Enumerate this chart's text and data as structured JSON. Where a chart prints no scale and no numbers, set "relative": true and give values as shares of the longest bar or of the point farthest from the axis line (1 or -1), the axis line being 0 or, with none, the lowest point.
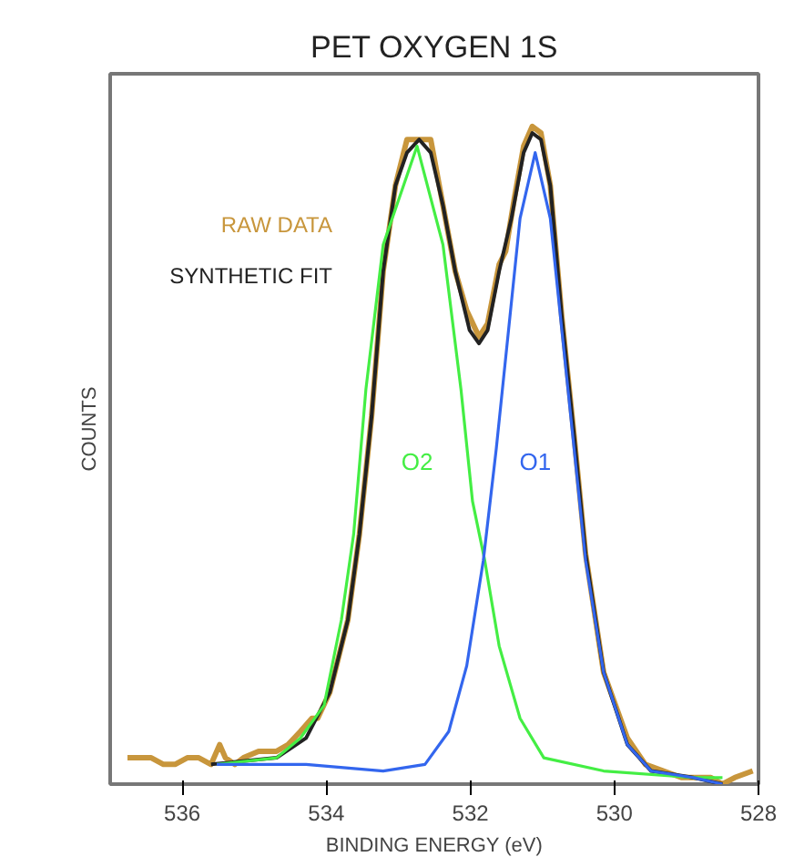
{
  "chart_data": {
    "type": "line",
    "title": "PET OXYGEN 1S",
    "xlabel": "BINDING ENERGY (eV)",
    "ylabel": "COUNTS",
    "relative": true,
    "xlim": [
      537,
      528
    ],
    "xticks": [
      536,
      534,
      532,
      530,
      528
    ],
    "grid": false,
    "legend": "left",
    "marker": "none",
    "line_style": "solid",
    "series": [
      {
        "name": "RAW DATA",
        "color": "#c8963c",
        "x": [
          536.76,
          536.6,
          536.43,
          536.26,
          536.1,
          535.93,
          535.77,
          535.6,
          535.48,
          535.4,
          535.27,
          535.15,
          534.94,
          534.69,
          534.53,
          534.36,
          534.2,
          534.12,
          533.95,
          533.7,
          533.54,
          533.37,
          533.21,
          533.04,
          532.88,
          532.75,
          532.63,
          532.55,
          532.38,
          532.21,
          532.05,
          531.88,
          531.76,
          531.6,
          531.51,
          531.39,
          531.26,
          531.14,
          531.02,
          530.89,
          530.73,
          530.56,
          530.4,
          530.15,
          529.82,
          529.57,
          529.32,
          529.07,
          528.83,
          528.66,
          528.5,
          528.33,
          528.08
        ],
        "values": [
          0.04,
          0.04,
          0.04,
          0.03,
          0.03,
          0.04,
          0.04,
          0.03,
          0.06,
          0.04,
          0.03,
          0.04,
          0.05,
          0.05,
          0.06,
          0.08,
          0.1,
          0.1,
          0.14,
          0.25,
          0.38,
          0.56,
          0.78,
          0.91,
          0.98,
          0.98,
          0.98,
          0.98,
          0.88,
          0.78,
          0.72,
          0.68,
          0.7,
          0.79,
          0.81,
          0.89,
          0.97,
          1.0,
          0.99,
          0.91,
          0.71,
          0.53,
          0.35,
          0.17,
          0.07,
          0.03,
          0.02,
          0.01,
          0.01,
          0.01,
          0.0,
          0.01,
          0.02
        ]
      },
      {
        "name": "SYNTHETIC FIT",
        "color": "#222222",
        "x": [
          535.6,
          534.69,
          534.28,
          533.95,
          533.7,
          533.54,
          533.37,
          533.21,
          533.04,
          532.88,
          532.71,
          532.55,
          532.38,
          532.21,
          532.01,
          531.88,
          531.76,
          531.6,
          531.43,
          531.26,
          531.14,
          531.02,
          530.89,
          530.73,
          530.56,
          530.4,
          530.15,
          529.82,
          529.49,
          528.91,
          528.5
        ],
        "values": [
          0.03,
          0.04,
          0.07,
          0.14,
          0.25,
          0.38,
          0.56,
          0.78,
          0.91,
          0.96,
          0.98,
          0.96,
          0.88,
          0.78,
          0.69,
          0.67,
          0.69,
          0.78,
          0.86,
          0.96,
          0.99,
          0.98,
          0.91,
          0.71,
          0.53,
          0.35,
          0.17,
          0.06,
          0.02,
          0.01,
          0.0
        ]
      },
      {
        "name": "O2",
        "color": "#44ee44",
        "x": [
          535.52,
          534.69,
          534.36,
          534.03,
          533.79,
          533.62,
          533.45,
          533.21,
          532.74,
          532.38,
          532.13,
          531.97,
          531.8,
          531.6,
          531.31,
          530.98,
          530.15,
          528.91,
          528.5
        ],
        "values": [
          0.03,
          0.04,
          0.07,
          0.12,
          0.25,
          0.38,
          0.6,
          0.82,
          0.97,
          0.82,
          0.6,
          0.43,
          0.34,
          0.21,
          0.1,
          0.04,
          0.02,
          0.01,
          0.01
        ]
      },
      {
        "name": "O1",
        "color": "#3366ee",
        "x": [
          535.52,
          534.28,
          533.21,
          532.63,
          532.3,
          532.05,
          531.82,
          531.64,
          531.47,
          531.31,
          531.1,
          530.89,
          530.73,
          530.56,
          530.4,
          530.15,
          529.82,
          529.49,
          528.91,
          528.5
        ],
        "values": [
          0.03,
          0.03,
          0.02,
          0.03,
          0.08,
          0.18,
          0.34,
          0.51,
          0.69,
          0.86,
          0.96,
          0.86,
          0.69,
          0.51,
          0.34,
          0.17,
          0.06,
          0.02,
          0.01,
          0.0
        ]
      }
    ]
  }
}
